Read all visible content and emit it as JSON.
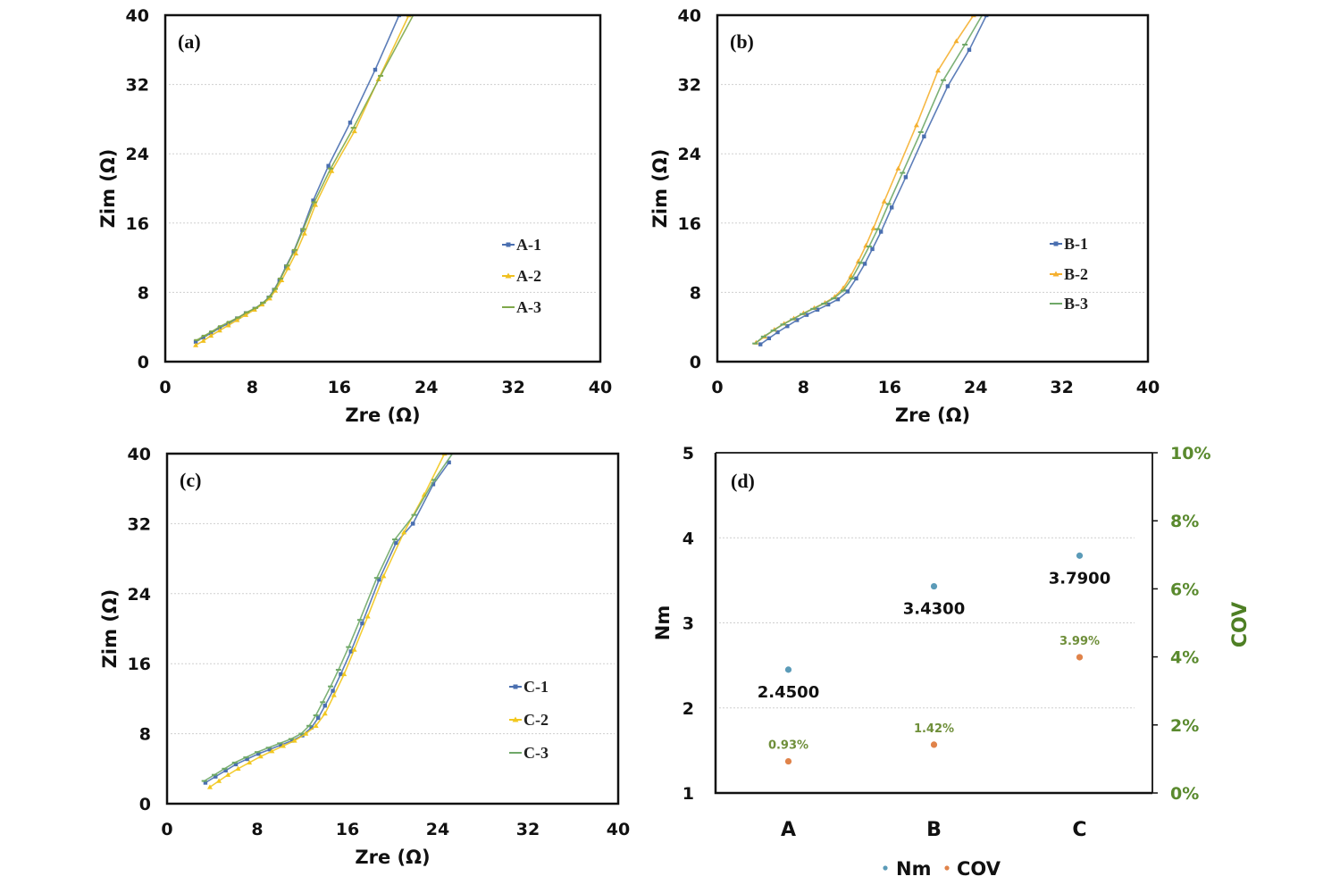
{
  "chart_data": [
    {
      "type": "line",
      "panel": "(a)",
      "xlabel": "Zre (Ω)",
      "ylabel": "Zim (Ω)",
      "xlim": [
        0,
        40
      ],
      "ylim": [
        0,
        40
      ],
      "xticks": [
        "0",
        "8",
        "16",
        "24",
        "32",
        "40"
      ],
      "yticks": [
        "0",
        "8",
        "16",
        "24",
        "32",
        "40"
      ],
      "grid": "horizontal-dotted",
      "legend_position": "right",
      "series": [
        {
          "name": "A-1",
          "color": "#4a6fb0",
          "marker": "square",
          "points": [
            [
              2.8,
              2.3
            ],
            [
              3.5,
              2.8
            ],
            [
              4.2,
              3.3
            ],
            [
              5,
              3.9
            ],
            [
              5.8,
              4.4
            ],
            [
              6.6,
              5.0
            ],
            [
              7.4,
              5.6
            ],
            [
              8.2,
              6.1
            ],
            [
              8.9,
              6.7
            ],
            [
              9.5,
              7.4
            ],
            [
              10,
              8.3
            ],
            [
              10.5,
              9.4
            ],
            [
              11.1,
              11.0
            ],
            [
              11.8,
              12.7
            ],
            [
              12.6,
              15.2
            ],
            [
              13.6,
              18.6
            ],
            [
              15.0,
              22.6
            ],
            [
              17.0,
              27.6
            ],
            [
              19.3,
              33.7
            ],
            [
              21.5,
              40
            ]
          ]
        },
        {
          "name": "A-2",
          "color": "#f0c020",
          "marker": "triangle",
          "points": [
            [
              2.8,
              1.9
            ],
            [
              3.5,
              2.4
            ],
            [
              4.2,
              3.0
            ],
            [
              5,
              3.6
            ],
            [
              5.8,
              4.2
            ],
            [
              6.6,
              4.8
            ],
            [
              7.4,
              5.4
            ],
            [
              8.2,
              6.0
            ],
            [
              8.9,
              6.6
            ],
            [
              9.6,
              7.3
            ],
            [
              10.1,
              8.2
            ],
            [
              10.7,
              9.4
            ],
            [
              11.3,
              10.8
            ],
            [
              12.0,
              12.5
            ],
            [
              12.8,
              14.8
            ],
            [
              13.8,
              18.1
            ],
            [
              15.3,
              22.0
            ],
            [
              17.4,
              26.6
            ],
            [
              19.6,
              32.6
            ],
            [
              22.4,
              40
            ]
          ]
        },
        {
          "name": "A-3",
          "color": "#7fa84a",
          "marker": "dash",
          "points": [
            [
              2.9,
              2.5
            ],
            [
              3.6,
              3.0
            ],
            [
              4.3,
              3.5
            ],
            [
              5.1,
              4.1
            ],
            [
              5.9,
              4.6
            ],
            [
              6.7,
              5.1
            ],
            [
              7.5,
              5.7
            ],
            [
              8.3,
              6.2
            ],
            [
              9.0,
              6.8
            ],
            [
              9.6,
              7.5
            ],
            [
              10.1,
              8.4
            ],
            [
              10.6,
              9.6
            ],
            [
              11.2,
              11.1
            ],
            [
              11.9,
              12.9
            ],
            [
              12.7,
              15.3
            ],
            [
              13.7,
              18.4
            ],
            [
              15.2,
              22.3
            ],
            [
              17.3,
              27.0
            ],
            [
              19.8,
              33.0
            ],
            [
              22.8,
              40
            ]
          ]
        }
      ]
    },
    {
      "type": "line",
      "panel": "(b)",
      "xlabel": "Zre (Ω)",
      "ylabel": "Zim (Ω)",
      "xlim": [
        0,
        40
      ],
      "ylim": [
        0,
        40
      ],
      "xticks": [
        "0",
        "8",
        "16",
        "24",
        "32",
        "40"
      ],
      "yticks": [
        "0",
        "8",
        "16",
        "24",
        "32",
        "40"
      ],
      "grid": "horizontal-dotted",
      "legend_position": "right",
      "series": [
        {
          "name": "B-1",
          "color": "#4a6fb0",
          "marker": "square",
          "points": [
            [
              4.0,
              2.0
            ],
            [
              4.8,
              2.7
            ],
            [
              5.6,
              3.4
            ],
            [
              6.5,
              4.1
            ],
            [
              7.4,
              4.8
            ],
            [
              8.3,
              5.4
            ],
            [
              9.3,
              6.0
            ],
            [
              10.3,
              6.6
            ],
            [
              11.2,
              7.2
            ],
            [
              12.1,
              8.1
            ],
            [
              12.9,
              9.6
            ],
            [
              13.7,
              11.3
            ],
            [
              14.4,
              13.0
            ],
            [
              15.2,
              15.0
            ],
            [
              16.2,
              17.8
            ],
            [
              17.5,
              21.3
            ],
            [
              19.2,
              26.0
            ],
            [
              21.4,
              31.8
            ],
            [
              23.4,
              36.0
            ],
            [
              25.0,
              40
            ]
          ]
        },
        {
          "name": "B-2",
          "color": "#f5b030",
          "marker": "triangle",
          "points": [
            [
              3.6,
              2.2
            ],
            [
              4.4,
              2.9
            ],
            [
              5.3,
              3.7
            ],
            [
              6.2,
              4.4
            ],
            [
              7.1,
              5.0
            ],
            [
              8.0,
              5.6
            ],
            [
              9.0,
              6.2
            ],
            [
              10.0,
              6.8
            ],
            [
              10.9,
              7.5
            ],
            [
              11.7,
              8.5
            ],
            [
              12.4,
              9.9
            ],
            [
              13.1,
              11.6
            ],
            [
              13.8,
              13.4
            ],
            [
              14.5,
              15.4
            ],
            [
              15.5,
              18.5
            ],
            [
              16.8,
              22.3
            ],
            [
              18.5,
              27.3
            ],
            [
              20.5,
              33.6
            ],
            [
              22.2,
              37.0
            ],
            [
              23.8,
              40
            ]
          ]
        },
        {
          "name": "B-3",
          "color": "#6fa868",
          "marker": "dash",
          "points": [
            [
              3.5,
              2.1
            ],
            [
              4.3,
              2.9
            ],
            [
              5.2,
              3.6
            ],
            [
              6.1,
              4.3
            ],
            [
              7.0,
              4.9
            ],
            [
              7.9,
              5.5
            ],
            [
              8.9,
              6.1
            ],
            [
              9.9,
              6.7
            ],
            [
              10.8,
              7.3
            ],
            [
              11.7,
              8.2
            ],
            [
              12.5,
              9.6
            ],
            [
              13.3,
              11.4
            ],
            [
              14.1,
              13.3
            ],
            [
              14.9,
              15.3
            ],
            [
              15.9,
              18.2
            ],
            [
              17.2,
              21.8
            ],
            [
              18.9,
              26.5
            ],
            [
              21.0,
              32.5
            ],
            [
              23.0,
              36.6
            ],
            [
              24.6,
              40
            ]
          ]
        }
      ]
    },
    {
      "type": "line",
      "panel": "(c)",
      "xlabel": "Zre (Ω)",
      "ylabel": "Zim (Ω)",
      "xlim": [
        0,
        40
      ],
      "ylim": [
        0,
        40
      ],
      "xticks": [
        "0",
        "8",
        "16",
        "24",
        "32",
        "40"
      ],
      "yticks": [
        "0",
        "8",
        "16",
        "24",
        "32",
        "40"
      ],
      "grid": "horizontal-dotted",
      "legend_position": "right",
      "series": [
        {
          "name": "C-1",
          "color": "#4a6fb0",
          "marker": "square",
          "points": [
            [
              3.4,
              2.4
            ],
            [
              4.3,
              3.1
            ],
            [
              5.2,
              3.8
            ],
            [
              6.1,
              4.5
            ],
            [
              7.1,
              5.1
            ],
            [
              8.1,
              5.7
            ],
            [
              9.1,
              6.2
            ],
            [
              10.1,
              6.7
            ],
            [
              11.1,
              7.2
            ],
            [
              12.0,
              7.8
            ],
            [
              12.8,
              8.7
            ],
            [
              13.4,
              9.8
            ],
            [
              14.0,
              11.2
            ],
            [
              14.7,
              12.9
            ],
            [
              15.4,
              14.8
            ],
            [
              16.3,
              17.4
            ],
            [
              17.3,
              20.6
            ],
            [
              18.8,
              25.6
            ],
            [
              20.3,
              29.8
            ],
            [
              21.8,
              32.0
            ],
            [
              23.6,
              36.5
            ],
            [
              25.0,
              39.0
            ]
          ]
        },
        {
          "name": "C-2",
          "color": "#f2c81e",
          "marker": "triangle",
          "points": [
            [
              3.8,
              1.9
            ],
            [
              4.6,
              2.6
            ],
            [
              5.4,
              3.3
            ],
            [
              6.3,
              4.0
            ],
            [
              7.3,
              4.7
            ],
            [
              8.3,
              5.4
            ],
            [
              9.3,
              6.0
            ],
            [
              10.3,
              6.6
            ],
            [
              11.3,
              7.2
            ],
            [
              12.3,
              8.0
            ],
            [
              13.2,
              8.9
            ],
            [
              14.0,
              10.3
            ],
            [
              14.8,
              12.4
            ],
            [
              15.7,
              14.8
            ],
            [
              16.6,
              17.6
            ],
            [
              17.8,
              21.4
            ],
            [
              19.2,
              26.0
            ],
            [
              21.0,
              31.0
            ],
            [
              22.8,
              35.3
            ],
            [
              24.6,
              40
            ]
          ]
        },
        {
          "name": "C-3",
          "color": "#6fa868",
          "marker": "dash",
          "points": [
            [
              3.3,
              2.6
            ],
            [
              4.2,
              3.3
            ],
            [
              5.1,
              4.0
            ],
            [
              6.0,
              4.7
            ],
            [
              7.0,
              5.3
            ],
            [
              8.0,
              5.9
            ],
            [
              9.0,
              6.4
            ],
            [
              10.0,
              6.9
            ],
            [
              11.0,
              7.4
            ],
            [
              11.9,
              8.0
            ],
            [
              12.6,
              8.9
            ],
            [
              13.2,
              10.1
            ],
            [
              13.8,
              11.6
            ],
            [
              14.5,
              13.4
            ],
            [
              15.2,
              15.3
            ],
            [
              16.1,
              17.9
            ],
            [
              17.1,
              21.0
            ],
            [
              18.6,
              25.8
            ],
            [
              20.2,
              30.2
            ],
            [
              21.9,
              33.0
            ],
            [
              23.7,
              37.0
            ],
            [
              25.3,
              40
            ]
          ]
        }
      ]
    },
    {
      "type": "scatter",
      "panel": "(d)",
      "categories": [
        "A",
        "B",
        "C"
      ],
      "ylabel": "Nm",
      "ylabel_right": "COV",
      "ylim": [
        1,
        5
      ],
      "ylim_right": [
        0,
        10
      ],
      "yticks": [
        "1",
        "2",
        "3",
        "4",
        "5"
      ],
      "yticks_right": [
        "0%",
        "2%",
        "4%",
        "6%",
        "8%",
        "10%"
      ],
      "grid": "horizontal-dotted",
      "legend_position": "bottom",
      "series": [
        {
          "name": "Nm",
          "axis": "left",
          "color": "#5b9bb8",
          "values": [
            2.45,
            3.43,
            3.79
          ],
          "labels": [
            "2.4500",
            "3.4300",
            "3.7900"
          ]
        },
        {
          "name": "COV",
          "axis": "right",
          "unit": "%",
          "color": "#e0834a",
          "values": [
            0.93,
            1.42,
            3.99
          ],
          "labels": [
            "0.93%",
            "1.42%",
            "3.99%"
          ]
        }
      ]
    }
  ]
}
